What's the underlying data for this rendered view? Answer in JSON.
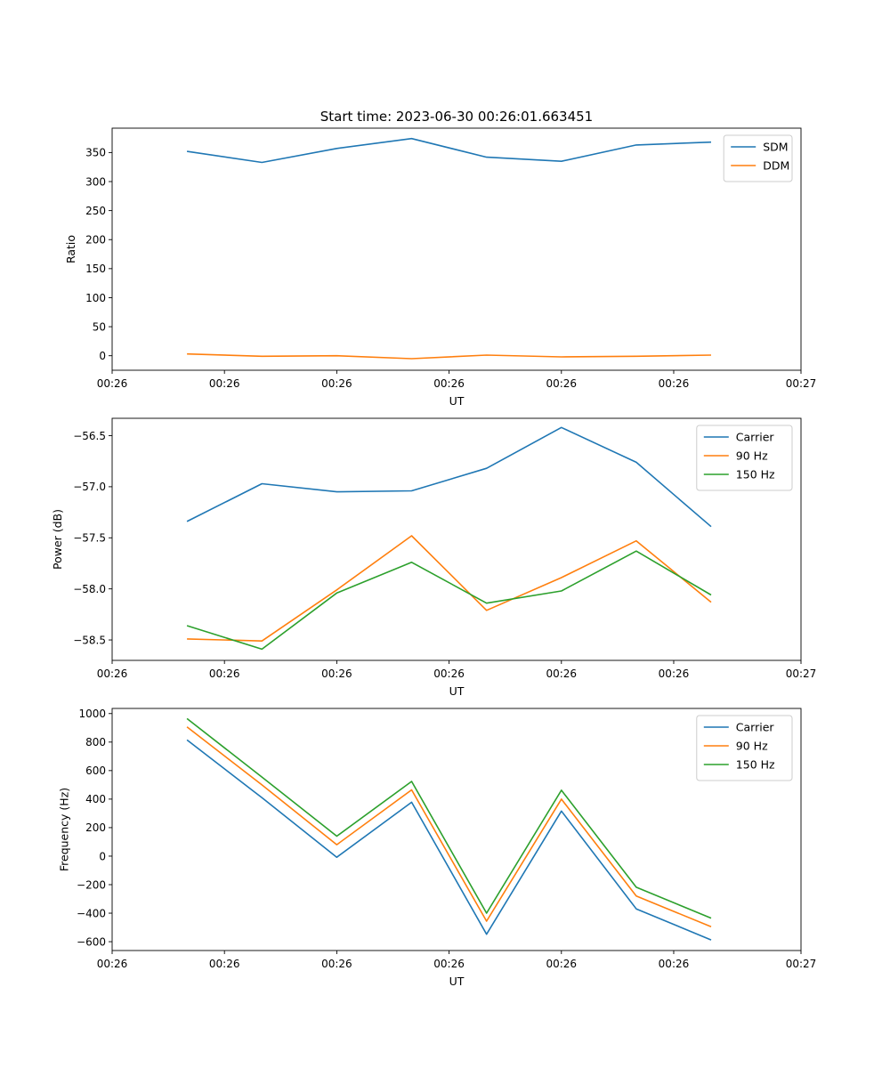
{
  "figure_title": "Start time: 2023-06-30 00:26:01.663451",
  "chart_data": [
    {
      "type": "line",
      "title": "Start time: 2023-06-30 00:26:01.663451",
      "xlabel": "UT",
      "ylabel": "Ratio",
      "x": [
        1,
        2,
        3,
        4,
        5,
        6,
        7,
        8
      ],
      "xlim": [
        0,
        9.2
      ],
      "x_ticks": [
        0,
        1.5,
        3,
        4.5,
        6,
        7.5,
        9.2
      ],
      "x_tick_labels": [
        "00:26",
        "00:26",
        "00:26",
        "00:26",
        "00:26",
        "00:26",
        "00:27"
      ],
      "ylim": [
        -25,
        392
      ],
      "y_ticks": [
        0,
        50,
        100,
        150,
        200,
        250,
        300,
        350
      ],
      "y_tick_labels": [
        "0",
        "50",
        "100",
        "150",
        "200",
        "250",
        "300",
        "350"
      ],
      "legend_position": "top-right",
      "series": [
        {
          "name": "SDM",
          "color": "#1f77b4",
          "values": [
            352,
            333,
            357,
            374,
            342,
            335,
            363,
            368
          ]
        },
        {
          "name": "DDM",
          "color": "#ff7f0e",
          "values": [
            3,
            -1,
            0,
            -5,
            1,
            -2,
            -1,
            1
          ]
        }
      ]
    },
    {
      "type": "line",
      "title": "",
      "xlabel": "UT",
      "ylabel": "Power (dB)",
      "x": [
        1,
        2,
        3,
        4,
        5,
        6,
        7,
        8
      ],
      "xlim": [
        0,
        9.2
      ],
      "x_ticks": [
        0,
        1.5,
        3,
        4.5,
        6,
        7.5,
        9.2
      ],
      "x_tick_labels": [
        "00:26",
        "00:26",
        "00:26",
        "00:26",
        "00:26",
        "00:26",
        "00:27"
      ],
      "ylim": [
        -58.7,
        -56.33
      ],
      "y_ticks": [
        -58.5,
        -58.0,
        -57.5,
        -57.0,
        -56.5
      ],
      "y_tick_labels": [
        "−58.5",
        "−58.0",
        "−57.5",
        "−57.0",
        "−56.5"
      ],
      "legend_position": "top-right",
      "series": [
        {
          "name": "Carrier",
          "color": "#1f77b4",
          "values": [
            -57.34,
            -56.97,
            -57.05,
            -57.04,
            -56.82,
            -56.42,
            -56.76,
            -57.39
          ]
        },
        {
          "name": "90 Hz",
          "color": "#ff7f0e",
          "values": [
            -58.49,
            -58.51,
            -58.01,
            -57.48,
            -58.21,
            -57.89,
            -57.53,
            -58.13
          ]
        },
        {
          "name": "150 Hz",
          "color": "#2ca02c",
          "values": [
            -58.36,
            -58.59,
            -58.04,
            -57.74,
            -58.14,
            -58.02,
            -57.63,
            -58.06
          ]
        }
      ]
    },
    {
      "type": "line",
      "title": "",
      "xlabel": "UT",
      "ylabel": "Frequency (Hz)",
      "x": [
        1,
        2,
        3,
        4,
        5,
        6,
        7,
        8
      ],
      "xlim": [
        0,
        9.2
      ],
      "x_ticks": [
        0,
        1.5,
        3,
        4.5,
        6,
        7.5,
        9.2
      ],
      "x_tick_labels": [
        "00:26",
        "00:26",
        "00:26",
        "00:26",
        "00:26",
        "00:26",
        "00:27"
      ],
      "ylim": [
        -662,
        1036
      ],
      "y_ticks": [
        -600,
        -400,
        -200,
        0,
        200,
        400,
        600,
        800,
        1000
      ],
      "y_tick_labels": [
        "−600",
        "−400",
        "−200",
        "0",
        "200",
        "400",
        "600",
        "800",
        "1000"
      ],
      "legend_position": "top-right",
      "series": [
        {
          "name": "Carrier",
          "color": "#1f77b4",
          "values": [
            815,
            410,
            -8,
            378,
            -548,
            316,
            -370,
            -588
          ]
        },
        {
          "name": "90 Hz",
          "color": "#ff7f0e",
          "values": [
            906,
            500,
            80,
            465,
            -456,
            400,
            -280,
            -495
          ]
        },
        {
          "name": "150 Hz",
          "color": "#2ca02c",
          "values": [
            965,
            555,
            140,
            524,
            -400,
            462,
            -218,
            -435
          ]
        }
      ]
    }
  ]
}
